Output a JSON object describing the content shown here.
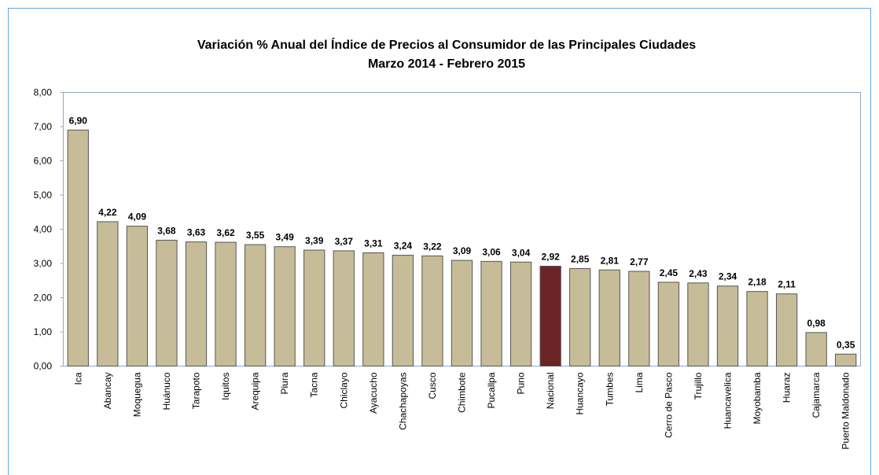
{
  "chart_data": {
    "type": "bar",
    "title": "Variación % Anual del Índice de Precios al Consumidor de las Principales Ciudades",
    "subtitle": "Marzo 2014 - Febrero 2015",
    "categories": [
      "Ica",
      "Abancay",
      "Moquegua",
      "Huánuco",
      "Tarapoto",
      "Iquitos",
      "Arequipa",
      "Piura",
      "Tacna",
      "Chiclayo",
      "Ayacucho",
      "Chachapoyas",
      "Cusco",
      "Chimbote",
      "Pucallpa",
      "Puno",
      "Nacional",
      "Huancayo",
      "Tumbes",
      "Lima",
      "Cerro de Pasco",
      "Trujillo",
      "Huancavelica",
      "Moyobamba",
      "Huaraz",
      "Cajamarca",
      "Puerto Maldonado"
    ],
    "values": [
      6.9,
      4.22,
      4.09,
      3.68,
      3.63,
      3.62,
      3.55,
      3.49,
      3.39,
      3.37,
      3.31,
      3.24,
      3.22,
      3.09,
      3.06,
      3.04,
      2.92,
      2.85,
      2.81,
      2.77,
      2.45,
      2.43,
      2.34,
      2.18,
      2.11,
      0.98,
      0.35
    ],
    "value_labels": [
      "6,90",
      "4,22",
      "4,09",
      "3,68",
      "3,63",
      "3,62",
      "3,55",
      "3,49",
      "3,39",
      "3,37",
      "3,31",
      "3,24",
      "3,22",
      "3,09",
      "3,06",
      "3,04",
      "2,92",
      "2,85",
      "2,81",
      "2,77",
      "2,45",
      "2,43",
      "2,34",
      "2,18",
      "2,11",
      "0,98",
      "0,35"
    ],
    "colors": [
      "#c6bd98",
      "#c6bd98",
      "#c6bd98",
      "#c6bd98",
      "#c6bd98",
      "#c6bd98",
      "#c6bd98",
      "#c6bd98",
      "#c6bd98",
      "#c6bd98",
      "#c6bd98",
      "#c6bd98",
      "#c6bd98",
      "#c6bd98",
      "#c6bd98",
      "#c6bd98",
      "#6b2426",
      "#c6bd98",
      "#c6bd98",
      "#c6bd98",
      "#c6bd98",
      "#c6bd98",
      "#c6bd98",
      "#c6bd98",
      "#c6bd98",
      "#c6bd98",
      "#c6bd98"
    ],
    "ylim": [
      0,
      8
    ],
    "yticks": [
      {
        "value": 0,
        "label": "0,00"
      },
      {
        "value": 1,
        "label": "1,00"
      },
      {
        "value": 2,
        "label": "2,00"
      },
      {
        "value": 3,
        "label": "3,00"
      },
      {
        "value": 4,
        "label": "4,00"
      },
      {
        "value": 5,
        "label": "5,00"
      },
      {
        "value": 6,
        "label": "6,00"
      },
      {
        "value": 7,
        "label": "7,00"
      },
      {
        "value": 8,
        "label": "8,00"
      }
    ],
    "grid": false
  }
}
